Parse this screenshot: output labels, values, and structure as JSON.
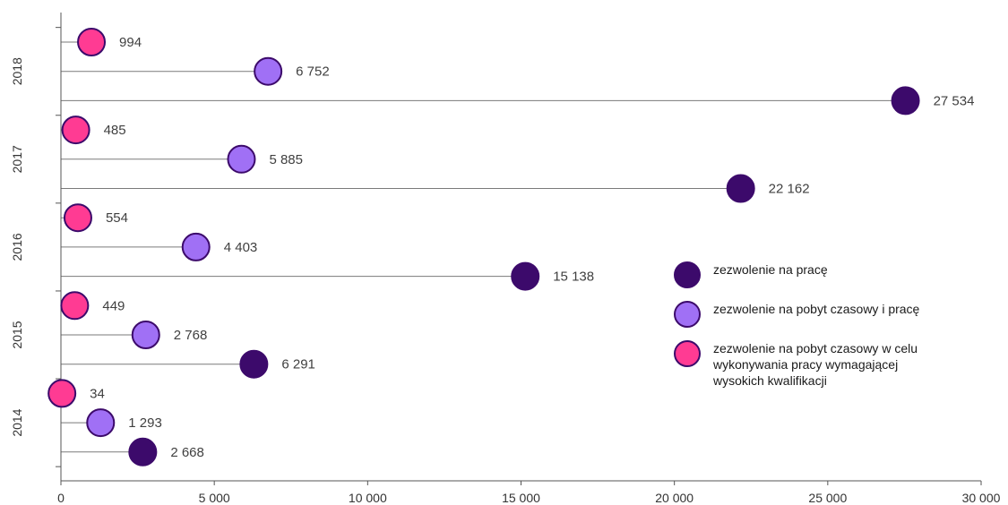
{
  "chart_data": {
    "type": "lollipop",
    "title": "",
    "xlabel": "",
    "ylabel": "",
    "xlim": [
      0,
      30000
    ],
    "x_ticks": [
      "0",
      "5 000",
      "10 000",
      "15 000",
      "20 000",
      "25 000",
      "30 000"
    ],
    "x_tick_values": [
      0,
      5000,
      10000,
      15000,
      20000,
      25000,
      30000
    ],
    "categories": [
      "2018",
      "2017",
      "2016",
      "2015",
      "2014"
    ],
    "legend_position": "right",
    "grid": false,
    "series": [
      {
        "name": "zezwolenie  na pracę",
        "color": "#3c0a6b",
        "values": [
          27534,
          22162,
          15138,
          6291,
          2668
        ],
        "labels": [
          "27 534",
          "22 162",
          "15 138",
          "6 291",
          "2 668"
        ]
      },
      {
        "name": "zezwolenie  na pobyt czasowy i pracę",
        "color": "#a070f5",
        "values": [
          6752,
          5885,
          4403,
          2768,
          1293
        ],
        "labels": [
          "6 752",
          "5 885",
          "4 403",
          "2 768",
          "1 293"
        ]
      },
      {
        "name": "zezwolenie  na pobyt czasowy w celu\nwykonywania  pracy wymagającej\nwysokich kwalifikacji",
        "color": "#ff3b93",
        "values": [
          994,
          485,
          554,
          449,
          34
        ],
        "labels": [
          "994",
          "485",
          "554",
          "449",
          "34"
        ]
      }
    ]
  }
}
